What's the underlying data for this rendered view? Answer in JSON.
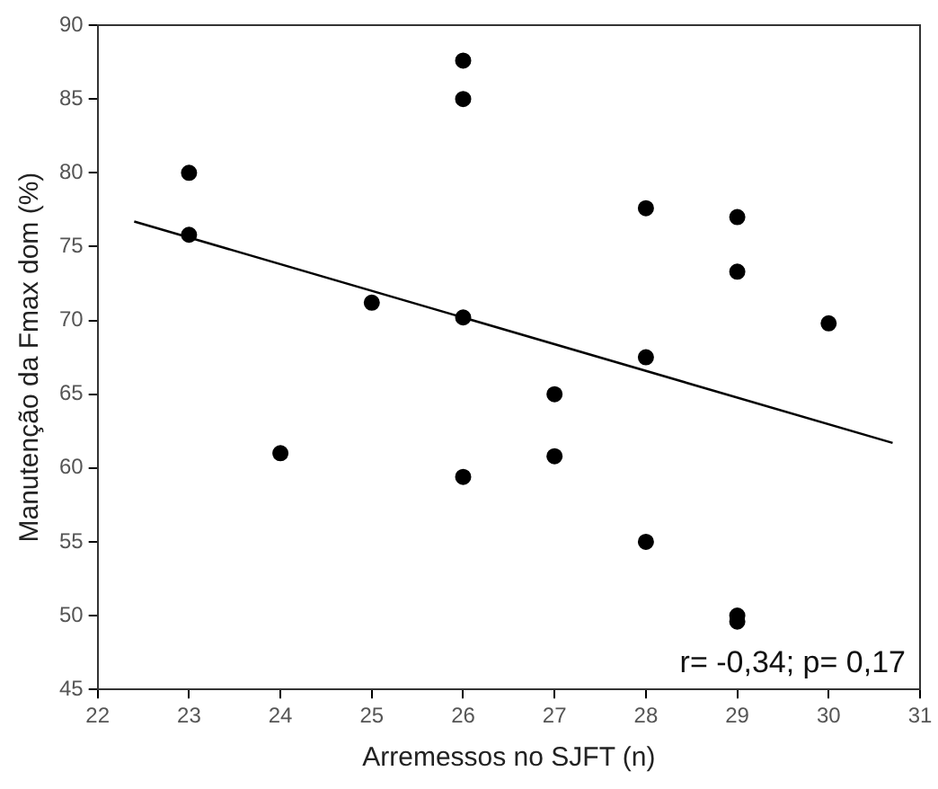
{
  "chart_data": {
    "type": "scatter",
    "xlabel": "Arremessos no SJFT (n)",
    "ylabel": "Manutenção da Fmax dom (%)",
    "series": [
      {
        "color": "#000000",
        "marker": "circle",
        "x": [
          23,
          23,
          24,
          25,
          26,
          26,
          26,
          26,
          27,
          27,
          28,
          28,
          28,
          29,
          29,
          29,
          29,
          30
        ],
        "values": [
          80,
          75.8,
          61,
          71.2,
          87.6,
          85,
          70.2,
          59.4,
          65,
          60.8,
          77.6,
          67.5,
          55,
          77,
          73.3,
          50,
          49.6,
          69.8
        ]
      },
      {
        "type": "line",
        "color": "#000000",
        "marker": "none",
        "x": [
          22.4,
          30.7
        ],
        "values": [
          76.7,
          61.7
        ]
      }
    ],
    "xlim": [
      22,
      31
    ],
    "xticks": [
      22,
      23,
      24,
      25,
      26,
      27,
      28,
      29,
      30,
      31
    ],
    "ylim": [
      45,
      90
    ],
    "yticks": [
      45,
      50,
      55,
      60,
      65,
      70,
      75,
      80,
      85,
      90
    ],
    "grid": false,
    "legend": false,
    "line_style": "solid",
    "annotations": [
      "r= -0,34; p= 0,17"
    ]
  }
}
